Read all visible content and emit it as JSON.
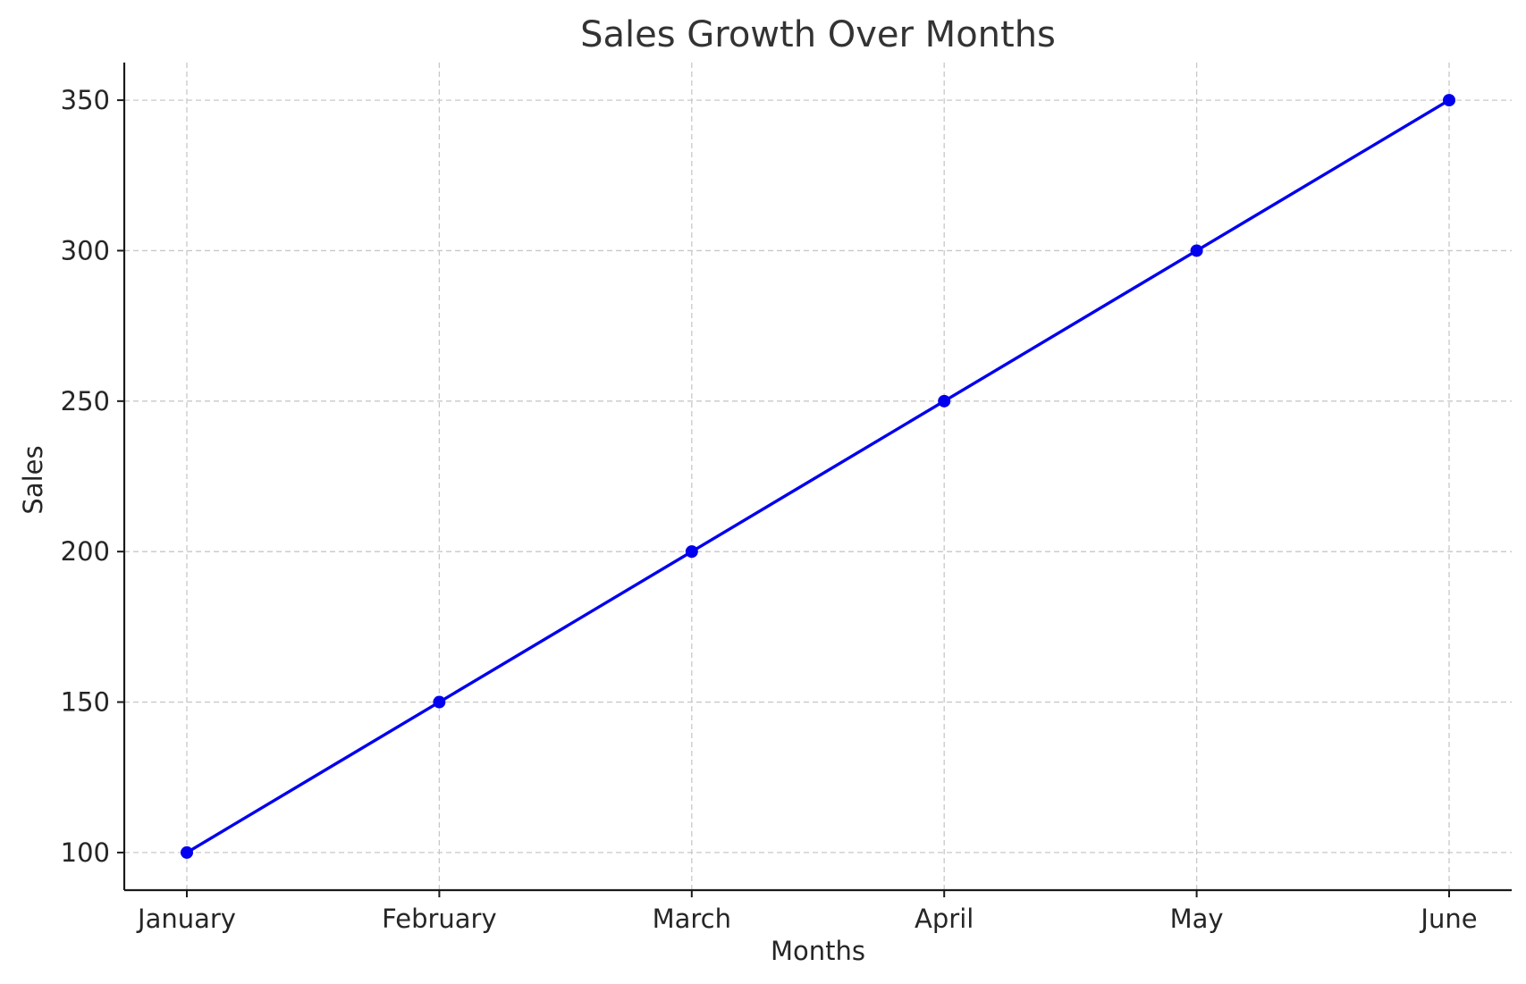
{
  "chart_data": {
    "type": "line",
    "title": "Sales Growth Over Months",
    "xlabel": "Months",
    "ylabel": "Sales",
    "categories": [
      "January",
      "February",
      "March",
      "April",
      "May",
      "June"
    ],
    "series": [
      {
        "values": [
          100,
          150,
          200,
          250,
          300,
          350
        ],
        "color": "#0000ee",
        "marker": "circle"
      }
    ],
    "ylim": [
      87.5,
      362.5
    ],
    "yticks": [
      100,
      150,
      200,
      250,
      300,
      350
    ],
    "grid": true,
    "legend": "none"
  }
}
